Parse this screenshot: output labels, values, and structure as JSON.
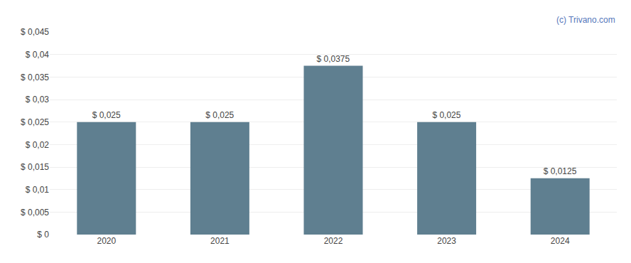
{
  "chart_data": {
    "type": "bar",
    "categories": [
      "2020",
      "2021",
      "2022",
      "2023",
      "2024"
    ],
    "values": [
      0.025,
      0.025,
      0.0375,
      0.025,
      0.0125
    ],
    "value_labels": [
      "$ 0,025",
      "$ 0,025",
      "$ 0,0375",
      "$ 0,025",
      "$ 0,0125"
    ],
    "data_labels": true,
    "color": "#5f7f90",
    "ylim": [
      0,
      0.045
    ],
    "yticks": [
      {
        "value": 0,
        "label": "$ 0"
      },
      {
        "value": 0.005,
        "label": "$ 0,005"
      },
      {
        "value": 0.01,
        "label": "$ 0,01"
      },
      {
        "value": 0.015,
        "label": "$ 0,015"
      },
      {
        "value": 0.02,
        "label": "$ 0,02"
      },
      {
        "value": 0.025,
        "label": "$ 0,025"
      },
      {
        "value": 0.03,
        "label": "$ 0,03"
      },
      {
        "value": 0.035,
        "label": "$ 0,035"
      },
      {
        "value": 0.04,
        "label": "$ 0,04"
      },
      {
        "value": 0.045,
        "label": "$ 0,045"
      }
    ],
    "grid": true,
    "annotations": [
      "(c) Trivano.com"
    ]
  }
}
